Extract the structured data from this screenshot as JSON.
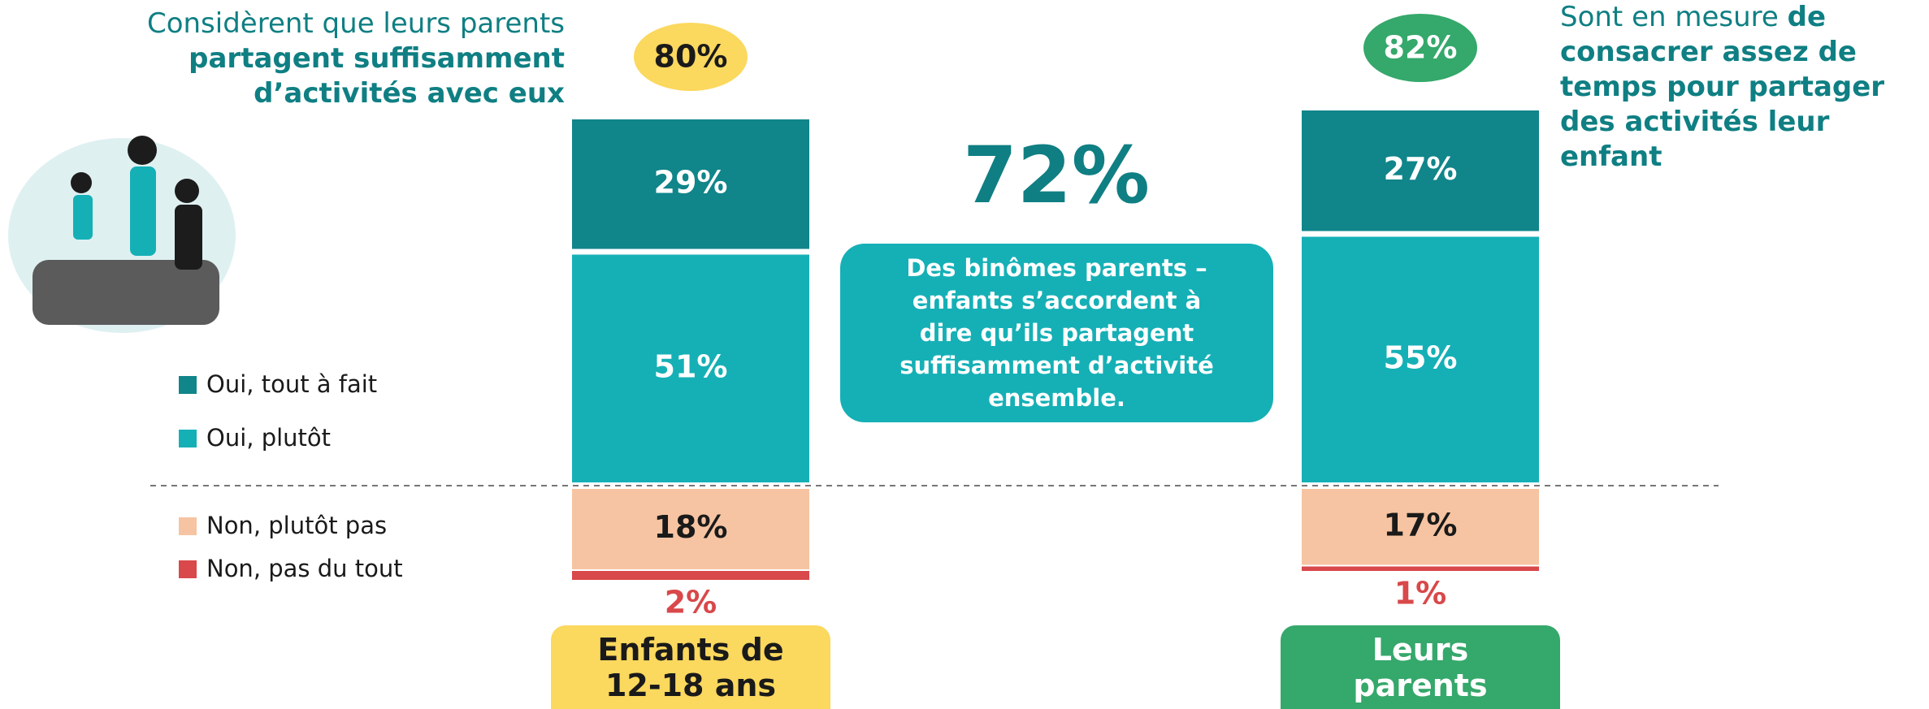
{
  "chart_data": {
    "type": "diverging-bar",
    "categories": [
      "Enfants de 12-18 ans",
      "Leurs parents"
    ],
    "category_colors": [
      "#fbd85e",
      "#35a86b"
    ],
    "category_text_colors": [
      "#1a1a1a",
      "#ffffff"
    ],
    "series": [
      {
        "name": "Oui, tout à fait",
        "color": "#10858a",
        "values": [
          29,
          27
        ],
        "value_labels": [
          "29%",
          "27%"
        ]
      },
      {
        "name": "Oui, plutôt",
        "color": "#15b0b6",
        "values": [
          51,
          55
        ],
        "value_labels": [
          "51%",
          "55%"
        ]
      },
      {
        "name": "Non, plutôt pas",
        "color": "#f6c4a2",
        "values": [
          18,
          17
        ],
        "value_labels": [
          "18%",
          "17%"
        ]
      },
      {
        "name": "Non, pas du tout",
        "color": "#d9484a",
        "values": [
          2,
          1
        ],
        "value_labels": [
          "2%",
          "1%"
        ]
      }
    ],
    "totals": {
      "values": [
        80,
        82
      ],
      "value_labels": [
        "80%",
        "82%"
      ]
    },
    "annotations": {
      "left": {
        "plain": "Considèrent que leurs parents",
        "bold": "partagent suffisamment d’activités avec eux"
      },
      "right": {
        "plain": "Sont en mesure",
        "bold": "de consacrer assez de temps pour partager des activités leur enfant"
      },
      "highlight": {
        "label": "72%",
        "text": "Des binômes parents – enfants s’accordent à dire qu’ils partagent suffisamment d’activité ensemble."
      }
    }
  }
}
